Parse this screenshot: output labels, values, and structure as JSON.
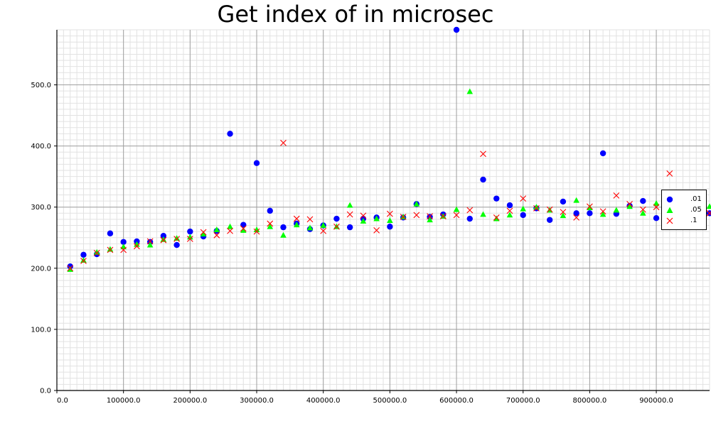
{
  "chart_data": {
    "type": "scatter",
    "title": "Get index of in microsec",
    "xlabel": "",
    "ylabel": "",
    "xlim": [
      0,
      980000
    ],
    "ylim": [
      0,
      590
    ],
    "grid": true,
    "legend_position": "right",
    "x_ticks": [
      "0.0",
      "100000.0",
      "200000.0",
      "300000.0",
      "400000.0",
      "500000.0",
      "600000.0",
      "700000.0",
      "800000.0",
      "900000.0"
    ],
    "y_ticks": [
      "0.0",
      "100.0",
      "200.0",
      "300.0",
      "400.0",
      "500.0"
    ],
    "x": [
      20000,
      40000,
      60000,
      80000,
      100000,
      120000,
      140000,
      160000,
      180000,
      200000,
      220000,
      240000,
      260000,
      280000,
      300000,
      320000,
      340000,
      360000,
      380000,
      400000,
      420000,
      440000,
      460000,
      480000,
      500000,
      520000,
      540000,
      560000,
      580000,
      600000,
      620000,
      640000,
      660000,
      680000,
      700000,
      720000,
      740000,
      760000,
      780000,
      800000,
      820000,
      840000,
      860000,
      880000,
      900000,
      920000,
      940000,
      960000,
      980000
    ],
    "series": [
      {
        "name": ".01",
        "color": "#0000ff",
        "marker": "circle",
        "values": [
          203,
          222,
          223,
          257,
          243,
          244,
          243,
          253,
          238,
          260,
          252,
          261,
          420,
          271,
          372,
          294,
          267,
          273,
          264,
          270,
          281,
          267,
          281,
          283,
          268,
          283,
          305,
          284,
          288,
          590,
          281,
          345,
          314,
          303,
          287,
          298,
          279,
          309,
          290,
          290,
          388,
          289,
          302,
          310,
          282,
          290,
          320,
          300,
          290
        ]
      },
      {
        "name": ".05",
        "color": "#00ff00",
        "marker": "triangle",
        "values": [
          198,
          213,
          226,
          231,
          235,
          239,
          238,
          247,
          249,
          251,
          256,
          263,
          268,
          262,
          263,
          268,
          254,
          271,
          266,
          270,
          268,
          303,
          277,
          281,
          278,
          284,
          305,
          279,
          285,
          296,
          489,
          288,
          281,
          287,
          297,
          300,
          295,
          286,
          311,
          299,
          288,
          295,
          301,
          290,
          306,
          295,
          302,
          292,
          301
        ]
      },
      {
        "name": ".1",
        "color": "#ff0000",
        "marker": "x",
        "values": [
          200,
          212,
          225,
          230,
          230,
          236,
          244,
          246,
          248,
          248,
          259,
          254,
          261,
          265,
          260,
          273,
          405,
          281,
          280,
          261,
          268,
          288,
          286,
          262,
          289,
          284,
          287,
          285,
          285,
          287,
          295,
          387,
          283,
          294,
          314,
          298,
          296,
          292,
          283,
          301,
          293,
          319,
          305,
          296,
          300,
          355,
          292,
          295,
          290
        ]
      }
    ]
  }
}
